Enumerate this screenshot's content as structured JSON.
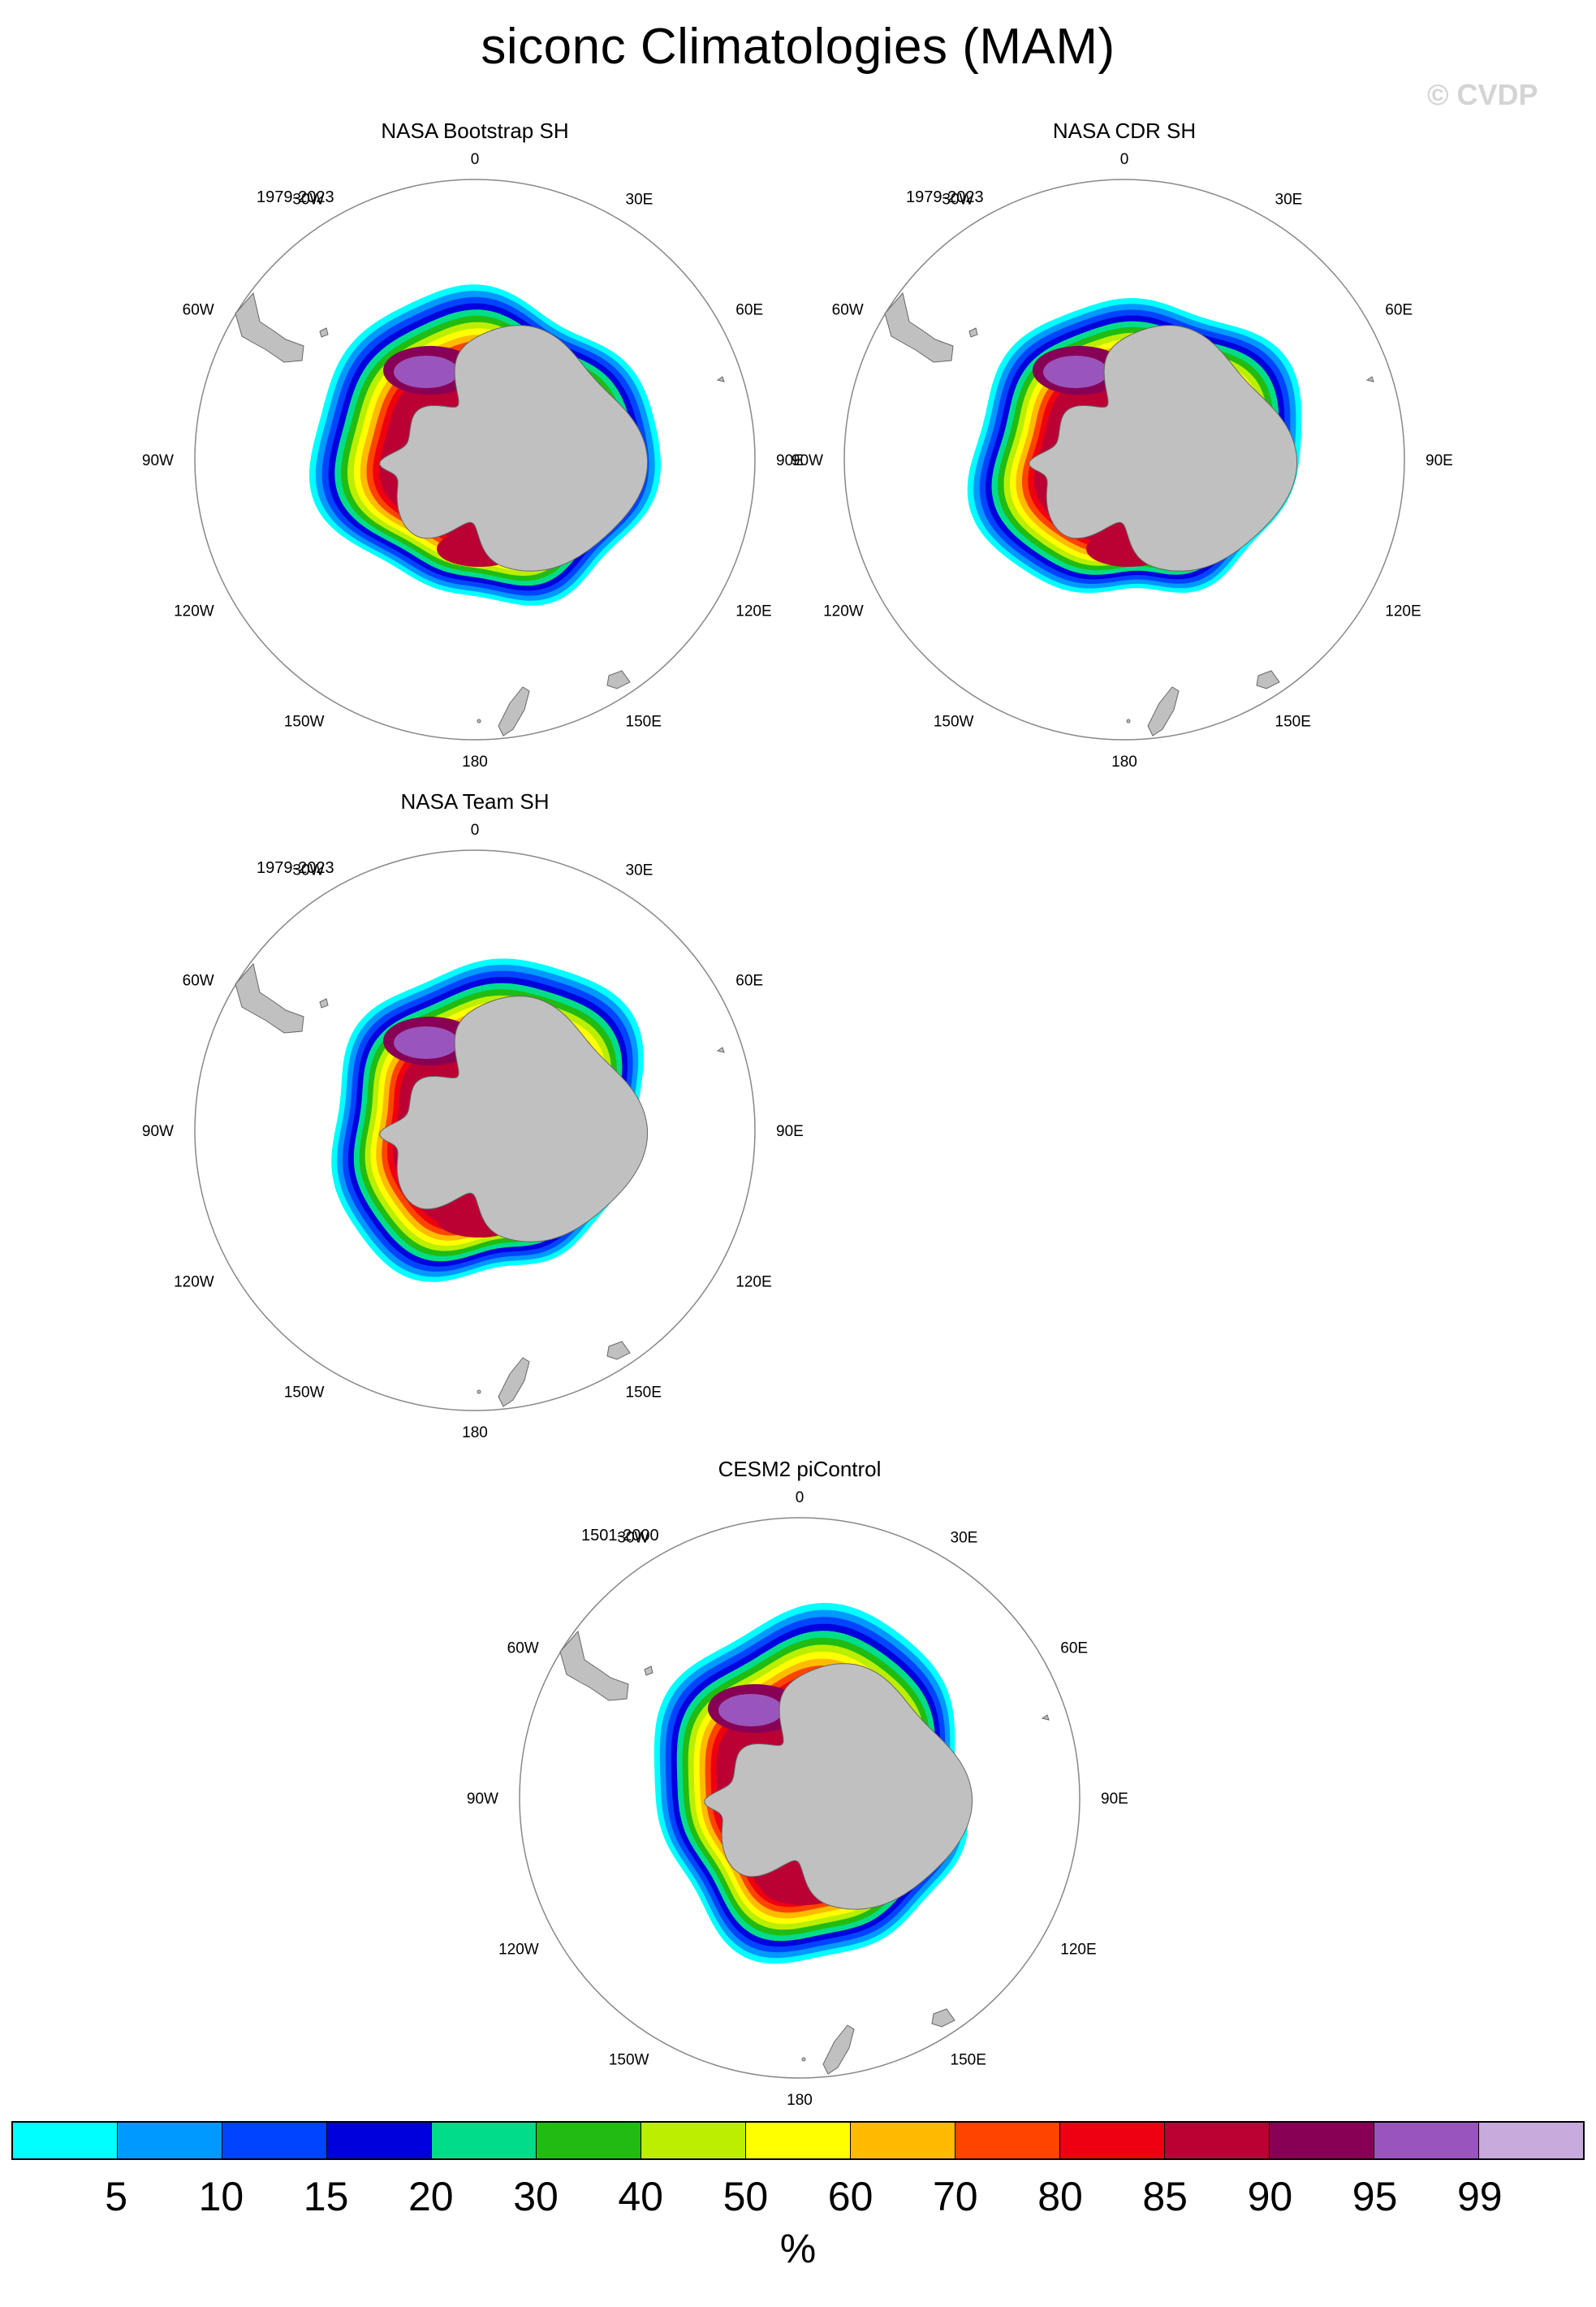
{
  "title": "siconc Climatologies (MAM)",
  "watermark": "© CVDP",
  "panels": [
    {
      "title": "NASA Bootstrap SH",
      "years": "1979-2023"
    },
    {
      "title": "NASA CDR SH",
      "years": "1979-2023"
    },
    {
      "title": "NASA Team SH",
      "years": "1979-2023"
    },
    {
      "title": "CESM2 piControl",
      "years": "1501-2000"
    }
  ],
  "longitude_labels": [
    "0",
    "30E",
    "60E",
    "90E",
    "120E",
    "150E",
    "180",
    "150W",
    "120W",
    "90W",
    "60W",
    "30W"
  ],
  "colorbar": {
    "labels": [
      "5",
      "10",
      "15",
      "20",
      "30",
      "40",
      "50",
      "60",
      "70",
      "80",
      "85",
      "90",
      "95",
      "99"
    ],
    "unit": "%",
    "colors": [
      "#00ffff",
      "#0099ff",
      "#0044ff",
      "#0000dd",
      "#00dd88",
      "#22bb11",
      "#bbee00",
      "#ffff00",
      "#ffbb00",
      "#ff4400",
      "#ee0011",
      "#bb0033",
      "#880055",
      "#9955bb",
      "#c8aadd"
    ]
  },
  "colors": {
    "land": "#c0c0c0",
    "land_outline": "#666666",
    "circle": "#888888"
  }
}
